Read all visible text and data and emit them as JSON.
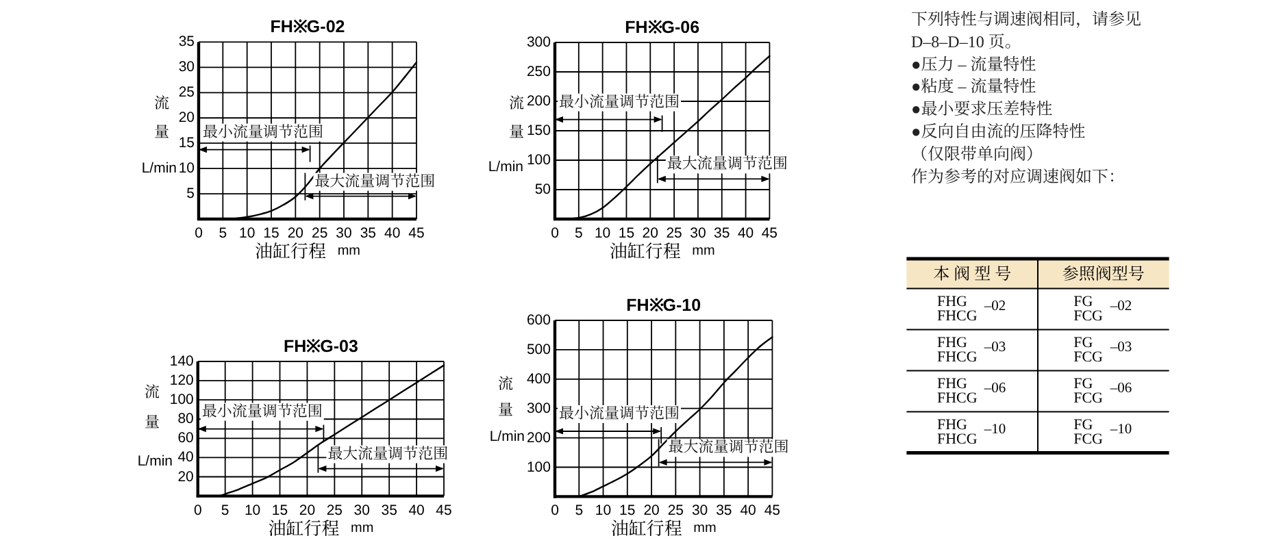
{
  "chart_data": [
    {
      "type": "line",
      "title": "FH※G-02",
      "xlabel": "油缸行程 mm",
      "ylabel": "流量 L/min",
      "x": [
        5,
        7.5,
        10,
        12.5,
        15,
        17.5,
        20,
        22.5,
        25,
        27.5,
        30,
        32.5,
        35,
        37.5,
        40,
        42.5,
        45
      ],
      "values": [
        0,
        0.1,
        0.4,
        0.9,
        1.6,
        2.8,
        4.4,
        6.9,
        10,
        12.6,
        15.1,
        17.6,
        20.1,
        22.6,
        25.1,
        28,
        31
      ],
      "color": "#000000",
      "xlim": [
        0,
        45
      ],
      "xticks": [
        0,
        5,
        10,
        15,
        20,
        25,
        30,
        35,
        40,
        45
      ],
      "ylim": [
        0,
        35
      ],
      "yticks": [
        5,
        10,
        15,
        20,
        25,
        30,
        35
      ],
      "grid": true,
      "annotations": [
        "最小流量调节范围",
        "最大流量调节范围"
      ]
    },
    {
      "type": "line",
      "title": "FH※G-06",
      "xlabel": "油缸行程 mm",
      "ylabel": "流量 L/min",
      "x": [
        2,
        5,
        7.5,
        10,
        12.5,
        15,
        17.5,
        20,
        22.5,
        25,
        27.5,
        30,
        32.5,
        35,
        37.5,
        40,
        42.5,
        45
      ],
      "values": [
        0,
        2,
        8,
        19,
        36,
        55,
        75,
        94,
        112,
        130,
        148,
        166,
        185,
        203,
        222,
        240,
        259,
        277
      ],
      "color": "#000000",
      "xlim": [
        0,
        45
      ],
      "xticks": [
        0,
        5,
        10,
        15,
        20,
        25,
        30,
        35,
        40,
        45
      ],
      "ylim": [
        0,
        300
      ],
      "yticks": [
        50,
        100,
        150,
        200,
        250,
        300
      ],
      "grid": true,
      "annotations": [
        "最小流量调节范围",
        "最大流量调节范围"
      ]
    },
    {
      "type": "line",
      "title": "FH※G-03",
      "xlabel": "油缸行程 mm",
      "ylabel": "流量 L/min",
      "x": [
        4,
        5,
        7.5,
        10,
        12.5,
        15,
        17.5,
        20,
        22.5,
        25,
        27.5,
        30,
        32.5,
        35,
        37.5,
        40,
        42.5,
        45
      ],
      "values": [
        0,
        2,
        7,
        13,
        19,
        27,
        35,
        45,
        55,
        64,
        73,
        82,
        91,
        100,
        109,
        118,
        127,
        136
      ],
      "color": "#000000",
      "xlim": [
        0,
        45
      ],
      "xticks": [
        0,
        5,
        10,
        15,
        20,
        25,
        30,
        35,
        40,
        45
      ],
      "ylim": [
        0,
        140
      ],
      "yticks": [
        20,
        40,
        60,
        80,
        100,
        120,
        140
      ],
      "grid": true,
      "annotations": [
        "最小流量调节范围",
        "最大流量调节范围"
      ]
    },
    {
      "type": "line",
      "title": "FH※G-10",
      "xlabel": "油缸行程 mm",
      "ylabel": "流量 L/min",
      "x": [
        5,
        7.5,
        10,
        12.5,
        15,
        17.5,
        20,
        22.5,
        25,
        27.5,
        30,
        32.5,
        35,
        37.5,
        40,
        42.5,
        45
      ],
      "values": [
        0,
        15,
        35,
        55,
        78,
        106,
        138,
        180,
        222,
        260,
        297,
        340,
        388,
        430,
        473,
        512,
        543
      ],
      "color": "#000000",
      "xlim": [
        0,
        45
      ],
      "xticks": [
        0,
        5,
        10,
        15,
        20,
        25,
        30,
        35,
        40,
        45
      ],
      "ylim": [
        0,
        600
      ],
      "yticks": [
        100,
        200,
        300,
        400,
        500,
        600
      ],
      "grid": true,
      "annotations": [
        "最小流量调节范围",
        "最大流量调节范围"
      ]
    },
    {
      "type": "other",
      "annotations": [
        "下列特性与调速阀相同，请参见",
        "D–8–D–10 页。",
        "●压力 – 流量特性",
        "●粘度 – 流量特性",
        "●最小要求压差特性",
        "●反向自由流的压降特性",
        "（仅限带单向阀）",
        "作为参考的对应调速阀如下："
      ]
    },
    {
      "type": "other",
      "categories": [
        "本 阀 型 号",
        "参照阀型号"
      ],
      "annotations": [
        "FHG\nFHCG\n–02",
        "FG\nFCG\n–02",
        "FHG\nFHCG\n–03",
        "FG\nFCG\n–03",
        "FHG\nFHCG\n–06",
        "FG\nFCG\n–06",
        "FHG\nFHCG\n–10",
        "FG\nFCG\n–10"
      ]
    }
  ]
}
